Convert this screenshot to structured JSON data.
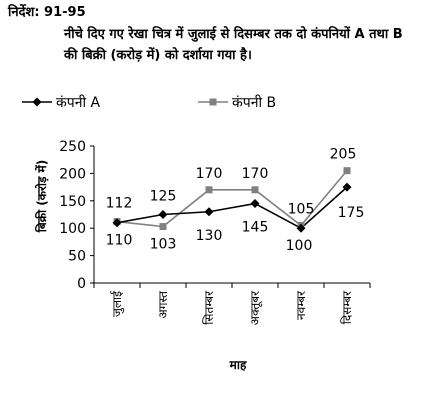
{
  "question": {
    "header": "निर्देश: 91-95",
    "text": "नीचे दिए गए रेखा चित्र में जुलाई से दिसम्बर तक दो कंपनियों A तथा B की बिक्री (करोड़ में) को दर्शाया गया है।"
  },
  "chart_data": {
    "type": "line",
    "categories": [
      "जुलाई",
      "अगस्त",
      "सितम्बर",
      "अक्तूबर",
      "नवम्बर",
      "दिसम्बर"
    ],
    "series": [
      {
        "name": "कंपनी A",
        "values": [
          110,
          125,
          130,
          145,
          100,
          175
        ],
        "color": "#000000",
        "marker": "diamond"
      },
      {
        "name": "कंपनी B",
        "values": [
          112,
          103,
          170,
          170,
          105,
          205
        ],
        "color": "#808080",
        "marker": "square"
      }
    ],
    "data_labels": [
      "112",
      "125",
      "170",
      "170",
      "105",
      "205",
      "110",
      "103",
      "130",
      "145",
      "100",
      "175"
    ],
    "xlabel": "माह",
    "ylabel": "बिक्री (करोड़ में)",
    "ylim": [
      0,
      250
    ],
    "yticks": [
      0,
      50,
      100,
      150,
      200,
      250
    ],
    "legend_position": "top",
    "grid": false
  }
}
